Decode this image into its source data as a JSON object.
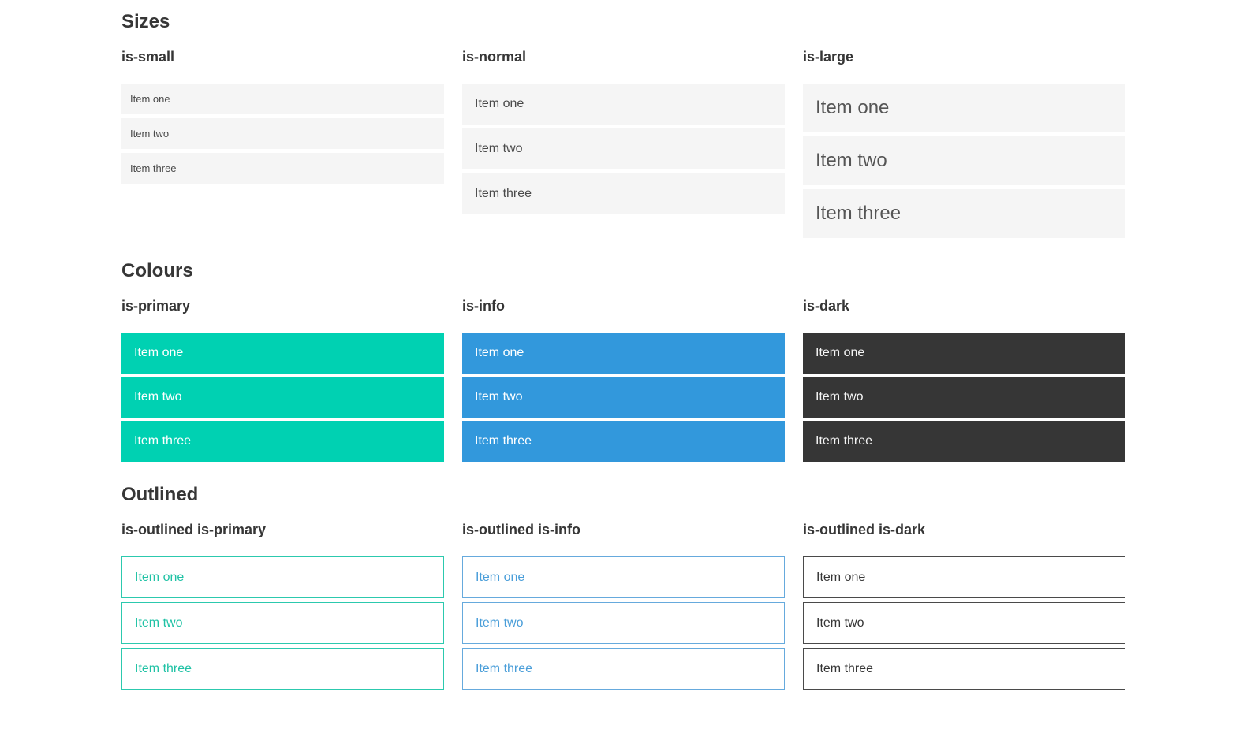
{
  "page": {
    "sections": [
      {
        "title": "Sizes",
        "columns": [
          {
            "heading": "is-small",
            "items": [
              "Item one",
              "Item two",
              "Item three"
            ]
          },
          {
            "heading": "is-normal",
            "items": [
              "Item one",
              "Item two",
              "Item three"
            ]
          },
          {
            "heading": "is-large",
            "items": [
              "Item one",
              "Item two",
              "Item three"
            ]
          }
        ]
      },
      {
        "title": "Colours",
        "columns": [
          {
            "heading": "is-primary",
            "items": [
              "Item one",
              "Item two",
              "Item three"
            ]
          },
          {
            "heading": "is-info",
            "items": [
              "Item one",
              "Item two",
              "Item three"
            ]
          },
          {
            "heading": "is-dark",
            "items": [
              "Item one",
              "Item two",
              "Item three"
            ]
          }
        ]
      },
      {
        "title": "Outlined",
        "columns": [
          {
            "heading": "is-outlined is-primary",
            "items": [
              "Item one",
              "Item two",
              "Item three"
            ]
          },
          {
            "heading": "is-outlined is-info",
            "items": [
              "Item one",
              "Item two",
              "Item three"
            ]
          },
          {
            "heading": "is-outlined is-dark",
            "items": [
              "Item one",
              "Item two",
              "Item three"
            ]
          }
        ]
      }
    ]
  },
  "colors": {
    "primary": "#00d1b2",
    "info": "#3298dc",
    "dark": "#363636",
    "item_background": "#f5f5f5",
    "item_text": "#4a4a4a",
    "heading_text": "#363636",
    "colored_item_text": "#ffffff"
  }
}
